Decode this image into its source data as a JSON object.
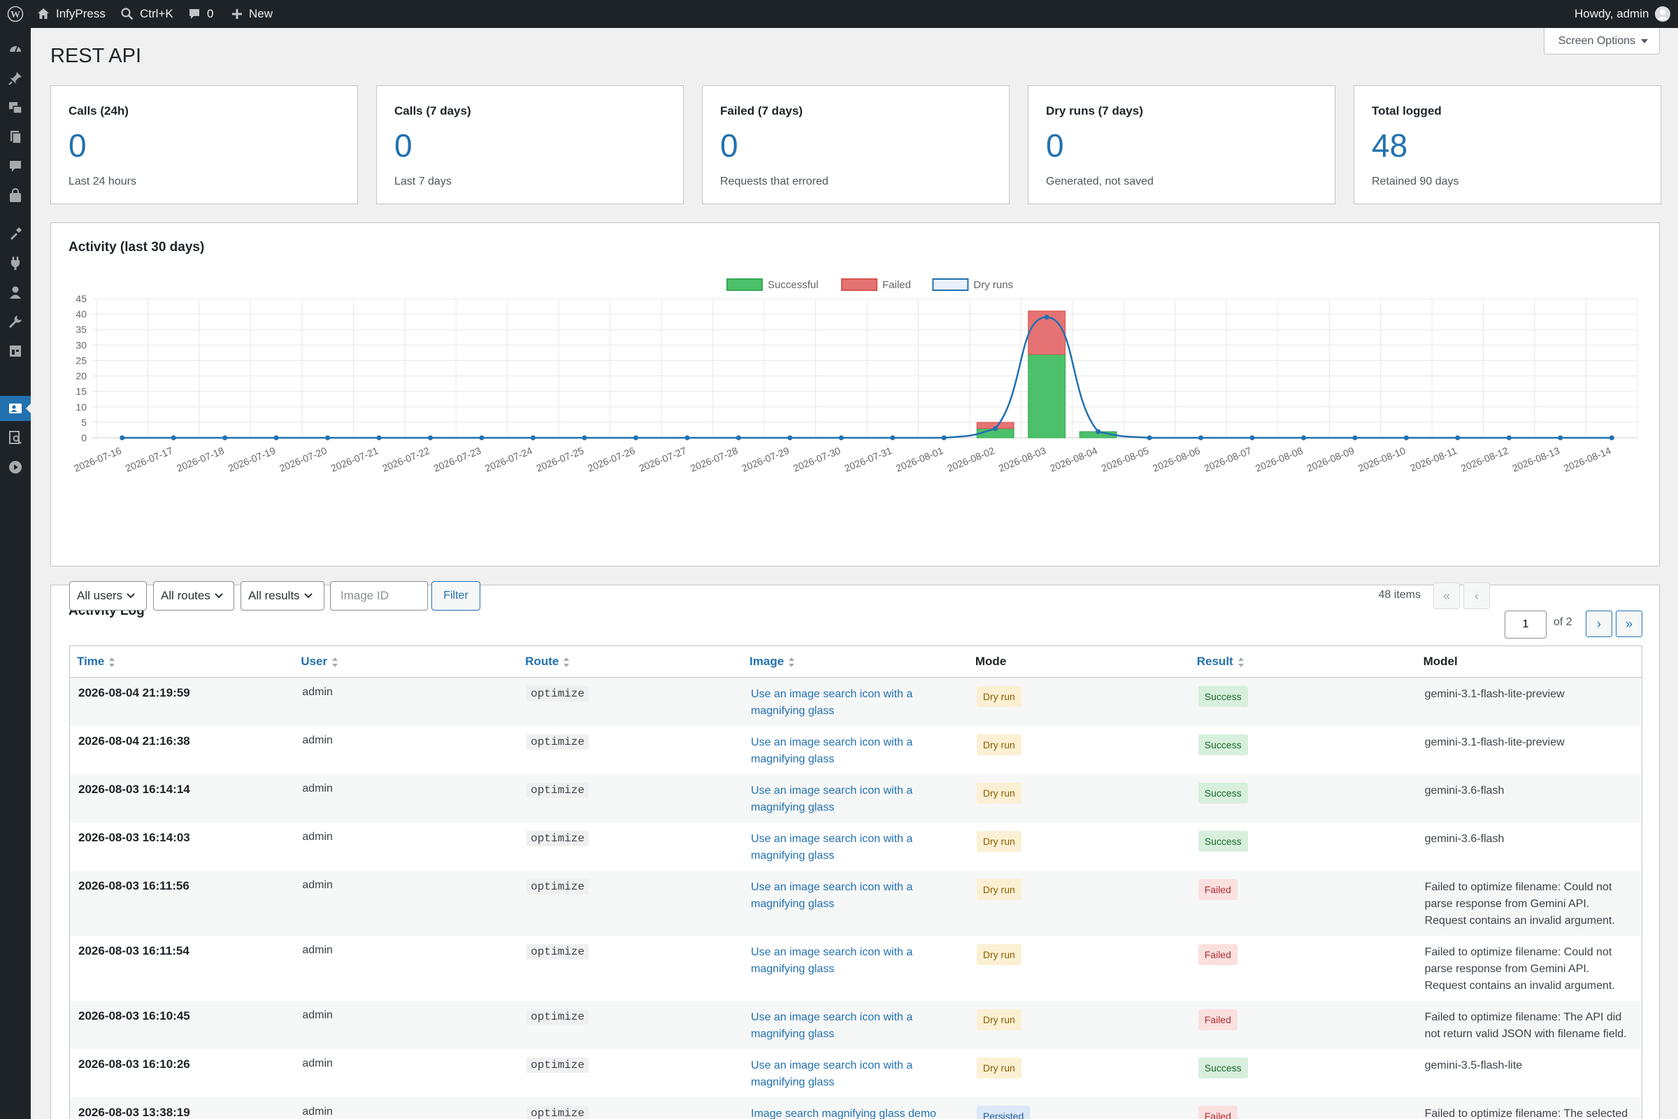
{
  "adminbar": {
    "site_name": "InfyPress",
    "search_shortcut": "Ctrl+K",
    "comments_count": "0",
    "new_label": "New",
    "howdy": "Howdy, admin"
  },
  "page": {
    "title": "REST API",
    "screen_options": "Screen Options"
  },
  "stats": [
    {
      "label": "Calls (24h)",
      "value": "0",
      "sub": "Last 24 hours"
    },
    {
      "label": "Calls (7 days)",
      "value": "0",
      "sub": "Last 7 days"
    },
    {
      "label": "Failed (7 days)",
      "value": "0",
      "sub": "Requests that errored"
    },
    {
      "label": "Dry runs (7 days)",
      "value": "0",
      "sub": "Generated, not saved"
    },
    {
      "label": "Total logged",
      "value": "48",
      "sub": "Retained 90 days"
    }
  ],
  "activity": {
    "title": "Activity (last 30 days)"
  },
  "chart_data": {
    "type": "bar",
    "title": "",
    "xlabel": "",
    "ylabel": "",
    "ylim": [
      0,
      45
    ],
    "yticks": [
      0,
      5,
      10,
      15,
      20,
      25,
      30,
      35,
      40,
      45
    ],
    "grid": true,
    "legend_position": "top",
    "stacked": true,
    "categories": [
      "2026-07-16",
      "2026-07-17",
      "2026-07-18",
      "2026-07-19",
      "2026-07-20",
      "2026-07-21",
      "2026-07-22",
      "2026-07-23",
      "2026-07-24",
      "2026-07-25",
      "2026-07-26",
      "2026-07-27",
      "2026-07-28",
      "2026-07-29",
      "2026-07-30",
      "2026-07-31",
      "2026-08-01",
      "2026-08-02",
      "2026-08-03",
      "2026-08-04",
      "2026-08-05",
      "2026-08-06",
      "2026-08-07",
      "2026-08-08",
      "2026-08-09",
      "2026-08-10",
      "2026-08-11",
      "2026-08-12",
      "2026-08-13",
      "2026-08-14"
    ],
    "series": [
      {
        "name": "Successful",
        "kind": "bar",
        "color": "#4cc06a",
        "values": [
          0,
          0,
          0,
          0,
          0,
          0,
          0,
          0,
          0,
          0,
          0,
          0,
          0,
          0,
          0,
          0,
          0,
          3,
          27,
          2,
          0,
          0,
          0,
          0,
          0,
          0,
          0,
          0,
          0,
          0
        ]
      },
      {
        "name": "Failed",
        "kind": "bar",
        "color": "#e57373",
        "values": [
          0,
          0,
          0,
          0,
          0,
          0,
          0,
          0,
          0,
          0,
          0,
          0,
          0,
          0,
          0,
          0,
          0,
          2,
          14,
          0,
          0,
          0,
          0,
          0,
          0,
          0,
          0,
          0,
          0,
          0
        ]
      },
      {
        "name": "Dry runs",
        "kind": "line",
        "color": "#2271b1",
        "values": [
          0,
          0,
          0,
          0,
          0,
          0,
          0,
          0,
          0,
          0,
          0,
          0,
          0,
          0,
          0,
          0,
          0,
          3,
          39,
          2,
          0,
          0,
          0,
          0,
          0,
          0,
          0,
          0,
          0,
          0
        ]
      }
    ]
  },
  "log": {
    "title": "Activity Log",
    "filters": {
      "users": "All users",
      "routes": "All routes",
      "results": "All results",
      "image_placeholder": "Image ID",
      "filter_button": "Filter"
    },
    "pagination": {
      "items": "48 items",
      "first": "«",
      "prev": "‹",
      "current": "1",
      "of": "of 2",
      "next": "›",
      "last": "»"
    },
    "columns": [
      "Time",
      "User",
      "Route",
      "Image",
      "Mode",
      "Result",
      "Model"
    ],
    "rows": [
      {
        "time": "2026-08-04 21:19:59",
        "user": "admin",
        "route": "optimize",
        "image": "Use an image search icon with a magnifying glass",
        "mode": "Dry run",
        "result": "Success",
        "model": "gemini-3.1-flash-lite-preview"
      },
      {
        "time": "2026-08-04 21:16:38",
        "user": "admin",
        "route": "optimize",
        "image": "Use an image search icon with a magnifying glass",
        "mode": "Dry run",
        "result": "Success",
        "model": "gemini-3.1-flash-lite-preview"
      },
      {
        "time": "2026-08-03 16:14:14",
        "user": "admin",
        "route": "optimize",
        "image": "Use an image search icon with a magnifying glass",
        "mode": "Dry run",
        "result": "Success",
        "model": "gemini-3.6-flash"
      },
      {
        "time": "2026-08-03 16:14:03",
        "user": "admin",
        "route": "optimize",
        "image": "Use an image search icon with a magnifying glass",
        "mode": "Dry run",
        "result": "Success",
        "model": "gemini-3.6-flash"
      },
      {
        "time": "2026-08-03 16:11:56",
        "user": "admin",
        "route": "optimize",
        "image": "Use an image search icon with a magnifying glass",
        "mode": "Dry run",
        "result": "Failed",
        "model": "Failed to optimize filename: Could not parse response from Gemini API. Request contains an invalid argument."
      },
      {
        "time": "2026-08-03 16:11:54",
        "user": "admin",
        "route": "optimize",
        "image": "Use an image search icon with a magnifying glass",
        "mode": "Dry run",
        "result": "Failed",
        "model": "Failed to optimize filename: Could not parse response from Gemini API. Request contains an invalid argument."
      },
      {
        "time": "2026-08-03 16:10:45",
        "user": "admin",
        "route": "optimize",
        "image": "Use an image search icon with a magnifying glass",
        "mode": "Dry run",
        "result": "Failed",
        "model": "Failed to optimize filename: The API did not return valid JSON with filename field."
      },
      {
        "time": "2026-08-03 16:10:26",
        "user": "admin",
        "route": "optimize",
        "image": "Use an image search icon with a magnifying glass",
        "mode": "Dry run",
        "result": "Success",
        "model": "gemini-3.5-flash-lite"
      },
      {
        "time": "2026-08-03 13:38:19",
        "user": "admin",
        "route": "optimize",
        "image": "Image search magnifying glass demo",
        "mode": "Persisted",
        "result": "Failed",
        "model": "Failed to optimize filename: The selected"
      }
    ]
  }
}
